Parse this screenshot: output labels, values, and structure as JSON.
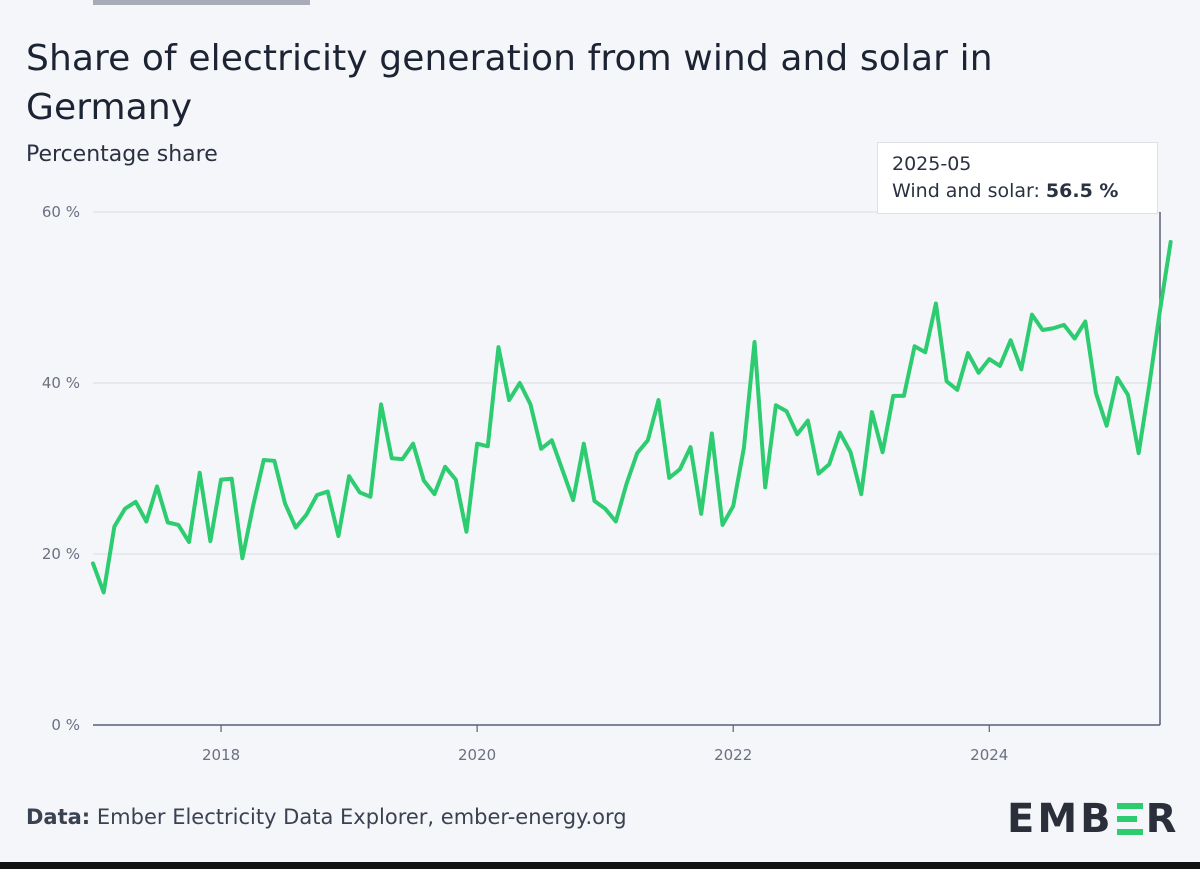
{
  "title": "Share of electricity generation from wind and solar in Germany",
  "subtitle": "Percentage share",
  "tooltip": {
    "date": "2025-05",
    "label": "Wind and solar:",
    "value": "56.5 %"
  },
  "footer": {
    "lead": "Data:",
    "text": "Ember Electricity Data Explorer, ember-energy.org"
  },
  "logo": {
    "left": "EMB",
    "right": "R",
    "alt": "EMBER"
  },
  "colors": {
    "line": "#2ecc71",
    "grid": "#d9dce3",
    "axis": "#5a5f7a"
  },
  "chart_data": {
    "type": "line",
    "title": "Share of electricity generation from wind and solar in Germany",
    "ylabel": "Percentage share",
    "xlabel": "",
    "ylim": [
      0,
      60
    ],
    "yticks": [
      0,
      20,
      40,
      60
    ],
    "ytick_labels": [
      "0 %",
      "20 %",
      "40 %",
      "60 %"
    ],
    "xticks": [
      2018,
      2020,
      2022,
      2024
    ],
    "xtick_labels": [
      "2018",
      "2020",
      "2022",
      "2024"
    ],
    "x_start": "2017-01",
    "x_end": "2025-05",
    "series": [
      {
        "name": "Wind and solar",
        "values": [
          18.9,
          15.5,
          23.2,
          25.3,
          26.1,
          23.8,
          27.9,
          23.7,
          23.4,
          21.4,
          29.5,
          21.5,
          28.7,
          28.8,
          19.5,
          25.6,
          31.0,
          30.9,
          25.9,
          23.1,
          24.6,
          26.9,
          27.3,
          22.1,
          29.1,
          27.2,
          26.7,
          37.5,
          31.2,
          31.1,
          32.9,
          28.6,
          27.0,
          30.2,
          28.7,
          22.6,
          32.9,
          32.6,
          44.2,
          38.0,
          40.0,
          37.5,
          32.3,
          33.3,
          29.8,
          26.3,
          32.9,
          26.2,
          25.3,
          23.8,
          28.2,
          31.8,
          33.3,
          38.0,
          28.9,
          29.9,
          32.5,
          24.7,
          34.1,
          23.4,
          25.6,
          32.4,
          44.8,
          27.8,
          37.4,
          36.7,
          34.0,
          35.6,
          29.4,
          30.5,
          34.2,
          31.9,
          27.0,
          36.6,
          31.9,
          38.5,
          38.5,
          44.3,
          43.6,
          49.3,
          40.2,
          39.2,
          43.5,
          41.2,
          42.8,
          42.0,
          45.0,
          41.6,
          48.0,
          46.2,
          46.4,
          46.8,
          45.2,
          47.2,
          38.8,
          35.0,
          40.6,
          38.6,
          31.8,
          39.8,
          48.5,
          56.5
        ]
      }
    ],
    "highlight": {
      "x": "2025-05",
      "value": 56.5
    }
  }
}
